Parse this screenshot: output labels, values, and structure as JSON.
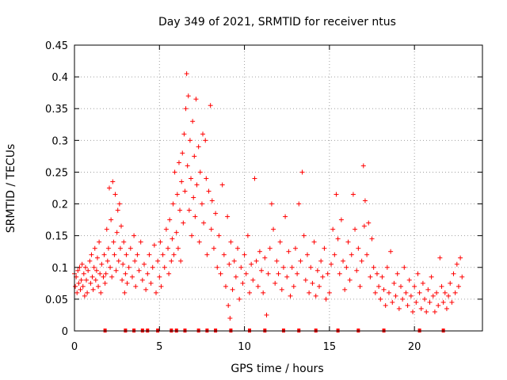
{
  "chart_data": {
    "type": "scatter",
    "title": "Day 349 of 2021, SRMTID for receiver ntus",
    "xlabel": "GPS time / hours",
    "ylabel": "SRMTID / TECUs",
    "xlim": [
      0,
      24
    ],
    "ylim": [
      0,
      0.45
    ],
    "x_ticks": [
      0,
      5,
      10,
      15,
      20
    ],
    "x_tick_labels": [
      "0",
      "5",
      "10",
      "15",
      "20"
    ],
    "y_ticks": [
      0,
      0.05,
      0.1,
      0.15,
      0.2,
      0.25,
      0.3,
      0.35,
      0.4,
      0.45
    ],
    "y_tick_labels": [
      "0",
      "0.05",
      "0.1",
      "0.15",
      "0.2",
      "0.25",
      "0.3",
      "0.35",
      "0.4",
      "0.45"
    ],
    "grid": true,
    "marker": "plus",
    "color": "#ff0000",
    "series": [
      {
        "name": "SRMTID",
        "points": [
          [
            0.0,
            0.09
          ],
          [
            0.05,
            0.07
          ],
          [
            0.1,
            0.085
          ],
          [
            0.15,
            0.06
          ],
          [
            0.2,
            0.095
          ],
          [
            0.25,
            0.075
          ],
          [
            0.3,
            0.1
          ],
          [
            0.35,
            0.065
          ],
          [
            0.4,
            0.08
          ],
          [
            0.45,
            0.105
          ],
          [
            0.5,
            0.07
          ],
          [
            0.55,
            0.09
          ],
          [
            0.6,
            0.055
          ],
          [
            0.65,
            0.1
          ],
          [
            0.7,
            0.08
          ],
          [
            0.75,
            0.06
          ],
          [
            0.8,
            0.095
          ],
          [
            0.9,
            0.11
          ],
          [
            0.95,
            0.075
          ],
          [
            1.0,
            0.12
          ],
          [
            1.05,
            0.085
          ],
          [
            1.1,
            0.065
          ],
          [
            1.15,
            0.1
          ],
          [
            1.2,
            0.13
          ],
          [
            1.25,
            0.08
          ],
          [
            1.3,
            0.095
          ],
          [
            1.35,
            0.115
          ],
          [
            1.4,
            0.07
          ],
          [
            1.45,
            0.14
          ],
          [
            1.5,
            0.09
          ],
          [
            1.55,
            0.06
          ],
          [
            1.6,
            0.105
          ],
          [
            1.7,
            0.085
          ],
          [
            1.75,
            0.12
          ],
          [
            1.8,
            0.075
          ],
          [
            1.85,
            0.09
          ],
          [
            1.9,
            0.16
          ],
          [
            1.95,
            0.11
          ],
          [
            2.0,
            0.13
          ],
          [
            2.05,
            0.225
          ],
          [
            2.1,
            0.1
          ],
          [
            2.15,
            0.175
          ],
          [
            2.2,
            0.085
          ],
          [
            2.25,
            0.235
          ],
          [
            2.3,
            0.14
          ],
          [
            2.35,
            0.12
          ],
          [
            2.4,
            0.215
          ],
          [
            2.45,
            0.095
          ],
          [
            2.5,
            0.155
          ],
          [
            2.55,
            0.19
          ],
          [
            2.6,
            0.11
          ],
          [
            2.65,
            0.2
          ],
          [
            2.7,
            0.13
          ],
          [
            2.75,
            0.165
          ],
          [
            2.8,
            0.08
          ],
          [
            2.85,
            0.105
          ],
          [
            2.9,
            0.14
          ],
          [
            2.95,
            0.06
          ],
          [
            3.0,
            0.09
          ],
          [
            3.05,
            0.12
          ],
          [
            3.1,
            0.075
          ],
          [
            3.2,
            0.1
          ],
          [
            3.3,
            0.13
          ],
          [
            3.4,
            0.085
          ],
          [
            3.5,
            0.15
          ],
          [
            3.55,
            0.11
          ],
          [
            3.6,
            0.07
          ],
          [
            3.7,
            0.12
          ],
          [
            3.8,
            0.095
          ],
          [
            3.9,
            0.14
          ],
          [
            4.0,
            0.08
          ],
          [
            4.1,
            0.105
          ],
          [
            4.2,
            0.065
          ],
          [
            4.3,
            0.09
          ],
          [
            4.4,
            0.12
          ],
          [
            4.5,
            0.075
          ],
          [
            4.6,
            0.1
          ],
          [
            4.7,
            0.135
          ],
          [
            4.8,
            0.06
          ],
          [
            4.9,
            0.11
          ],
          [
            5.0,
            0.085
          ],
          [
            5.05,
            0.14
          ],
          [
            5.1,
            0.07
          ],
          [
            5.2,
            0.12
          ],
          [
            5.3,
            0.1
          ],
          [
            5.4,
            0.16
          ],
          [
            5.5,
            0.13
          ],
          [
            5.55,
            0.09
          ],
          [
            5.6,
            0.175
          ],
          [
            5.7,
            0.11
          ],
          [
            5.75,
            0.145
          ],
          [
            5.8,
            0.2
          ],
          [
            5.85,
            0.12
          ],
          [
            5.9,
            0.25
          ],
          [
            6.0,
            0.155
          ],
          [
            6.05,
            0.215
          ],
          [
            6.1,
            0.13
          ],
          [
            6.15,
            0.265
          ],
          [
            6.2,
            0.19
          ],
          [
            6.25,
            0.11
          ],
          [
            6.3,
            0.235
          ],
          [
            6.35,
            0.28
          ],
          [
            6.4,
            0.17
          ],
          [
            6.45,
            0.31
          ],
          [
            6.5,
            0.22
          ],
          [
            6.55,
            0.35
          ],
          [
            6.6,
            0.405
          ],
          [
            6.65,
            0.26
          ],
          [
            6.7,
            0.37
          ],
          [
            6.75,
            0.19
          ],
          [
            6.8,
            0.3
          ],
          [
            6.85,
            0.24
          ],
          [
            6.9,
            0.15
          ],
          [
            6.95,
            0.33
          ],
          [
            7.0,
            0.21
          ],
          [
            7.05,
            0.275
          ],
          [
            7.1,
            0.18
          ],
          [
            7.15,
            0.365
          ],
          [
            7.2,
            0.23
          ],
          [
            7.3,
            0.29
          ],
          [
            7.35,
            0.14
          ],
          [
            7.4,
            0.25
          ],
          [
            7.5,
            0.2
          ],
          [
            7.55,
            0.31
          ],
          [
            7.6,
            0.17
          ],
          [
            7.7,
            0.3
          ],
          [
            7.75,
            0.24
          ],
          [
            7.8,
            0.12
          ],
          [
            7.9,
            0.22
          ],
          [
            8.0,
            0.355
          ],
          [
            8.05,
            0.16
          ],
          [
            8.1,
            0.205
          ],
          [
            8.2,
            0.13
          ],
          [
            8.3,
            0.185
          ],
          [
            8.4,
            0.1
          ],
          [
            8.5,
            0.15
          ],
          [
            8.6,
            0.09
          ],
          [
            8.7,
            0.23
          ],
          [
            8.8,
            0.12
          ],
          [
            8.9,
            0.07
          ],
          [
            9.0,
            0.18
          ],
          [
            9.05,
            0.04
          ],
          [
            9.1,
            0.105
          ],
          [
            9.15,
            0.02
          ],
          [
            9.2,
            0.14
          ],
          [
            9.3,
            0.065
          ],
          [
            9.4,
            0.11
          ],
          [
            9.5,
            0.085
          ],
          [
            9.6,
            0.13
          ],
          [
            9.7,
            0.05
          ],
          [
            9.8,
            0.1
          ],
          [
            9.9,
            0.075
          ],
          [
            10.0,
            0.12
          ],
          [
            10.1,
            0.09
          ],
          [
            10.2,
            0.15
          ],
          [
            10.3,
            0.06
          ],
          [
            10.4,
            0.105
          ],
          [
            10.5,
            0.08
          ],
          [
            10.6,
            0.24
          ],
          [
            10.7,
            0.11
          ],
          [
            10.8,
            0.07
          ],
          [
            10.9,
            0.125
          ],
          [
            11.0,
            0.095
          ],
          [
            11.1,
            0.06
          ],
          [
            11.2,
            0.115
          ],
          [
            11.3,
            0.025
          ],
          [
            11.4,
            0.09
          ],
          [
            11.5,
            0.13
          ],
          [
            11.6,
            0.2
          ],
          [
            11.7,
            0.16
          ],
          [
            11.8,
            0.075
          ],
          [
            11.9,
            0.11
          ],
          [
            12.0,
            0.09
          ],
          [
            12.1,
            0.14
          ],
          [
            12.2,
            0.065
          ],
          [
            12.3,
            0.1
          ],
          [
            12.4,
            0.18
          ],
          [
            12.5,
            0.085
          ],
          [
            12.6,
            0.125
          ],
          [
            12.7,
            0.055
          ],
          [
            12.8,
            0.1
          ],
          [
            12.9,
            0.07
          ],
          [
            13.0,
            0.13
          ],
          [
            13.1,
            0.09
          ],
          [
            13.2,
            0.2
          ],
          [
            13.3,
            0.11
          ],
          [
            13.4,
            0.25
          ],
          [
            13.5,
            0.15
          ],
          [
            13.6,
            0.08
          ],
          [
            13.7,
            0.12
          ],
          [
            13.8,
            0.06
          ],
          [
            13.9,
            0.1
          ],
          [
            14.0,
            0.075
          ],
          [
            14.1,
            0.14
          ],
          [
            14.2,
            0.055
          ],
          [
            14.3,
            0.095
          ],
          [
            14.4,
            0.07
          ],
          [
            14.5,
            0.11
          ],
          [
            14.6,
            0.085
          ],
          [
            14.7,
            0.13
          ],
          [
            14.8,
            0.05
          ],
          [
            14.9,
            0.09
          ],
          [
            15.0,
            0.06
          ],
          [
            15.1,
            0.105
          ],
          [
            15.2,
            0.16
          ],
          [
            15.3,
            0.12
          ],
          [
            15.4,
            0.215
          ],
          [
            15.5,
            0.145
          ],
          [
            15.6,
            0.09
          ],
          [
            15.7,
            0.175
          ],
          [
            15.8,
            0.11
          ],
          [
            15.9,
            0.065
          ],
          [
            16.0,
            0.1
          ],
          [
            16.1,
            0.14
          ],
          [
            16.2,
            0.08
          ],
          [
            16.3,
            0.12
          ],
          [
            16.4,
            0.215
          ],
          [
            16.5,
            0.16
          ],
          [
            16.6,
            0.095
          ],
          [
            16.7,
            0.13
          ],
          [
            16.8,
            0.07
          ],
          [
            16.9,
            0.11
          ],
          [
            17.0,
            0.26
          ],
          [
            17.05,
            0.165
          ],
          [
            17.1,
            0.205
          ],
          [
            17.2,
            0.12
          ],
          [
            17.3,
            0.17
          ],
          [
            17.4,
            0.085
          ],
          [
            17.5,
            0.145
          ],
          [
            17.6,
            0.1
          ],
          [
            17.7,
            0.06
          ],
          [
            17.8,
            0.09
          ],
          [
            17.9,
            0.07
          ],
          [
            18.0,
            0.05
          ],
          [
            18.1,
            0.085
          ],
          [
            18.2,
            0.065
          ],
          [
            18.3,
            0.04
          ],
          [
            18.4,
            0.1
          ],
          [
            18.5,
            0.06
          ],
          [
            18.6,
            0.125
          ],
          [
            18.7,
            0.045
          ],
          [
            18.8,
            0.075
          ],
          [
            18.9,
            0.055
          ],
          [
            19.0,
            0.09
          ],
          [
            19.1,
            0.035
          ],
          [
            19.2,
            0.07
          ],
          [
            19.3,
            0.05
          ],
          [
            19.4,
            0.1
          ],
          [
            19.5,
            0.06
          ],
          [
            19.6,
            0.04
          ],
          [
            19.7,
            0.08
          ],
          [
            19.8,
            0.055
          ],
          [
            19.9,
            0.03
          ],
          [
            20.0,
            0.07
          ],
          [
            20.1,
            0.045
          ],
          [
            20.2,
            0.09
          ],
          [
            20.3,
            0.06
          ],
          [
            20.4,
            0.035
          ],
          [
            20.5,
            0.075
          ],
          [
            20.6,
            0.05
          ],
          [
            20.7,
            0.03
          ],
          [
            20.8,
            0.065
          ],
          [
            20.9,
            0.045
          ],
          [
            21.0,
            0.085
          ],
          [
            21.1,
            0.055
          ],
          [
            21.2,
            0.03
          ],
          [
            21.3,
            0.06
          ],
          [
            21.4,
            0.04
          ],
          [
            21.5,
            0.115
          ],
          [
            21.6,
            0.07
          ],
          [
            21.7,
            0.045
          ],
          [
            21.8,
            0.06
          ],
          [
            21.9,
            0.035
          ],
          [
            22.0,
            0.055
          ],
          [
            22.1,
            0.075
          ],
          [
            22.2,
            0.045
          ],
          [
            22.3,
            0.09
          ],
          [
            22.4,
            0.06
          ],
          [
            22.5,
            0.105
          ],
          [
            22.6,
            0.07
          ],
          [
            22.7,
            0.115
          ],
          [
            22.8,
            0.085
          ]
        ]
      }
    ],
    "zero_marks_x": [
      1.8,
      3.0,
      3.5,
      4.0,
      4.3,
      4.9,
      5.7,
      6.0,
      6.5,
      7.3,
      7.8,
      8.3,
      9.2,
      10.3,
      11.2,
      12.3,
      13.2,
      14.2,
      15.5,
      16.7,
      18.2,
      20.3,
      21.7
    ]
  }
}
